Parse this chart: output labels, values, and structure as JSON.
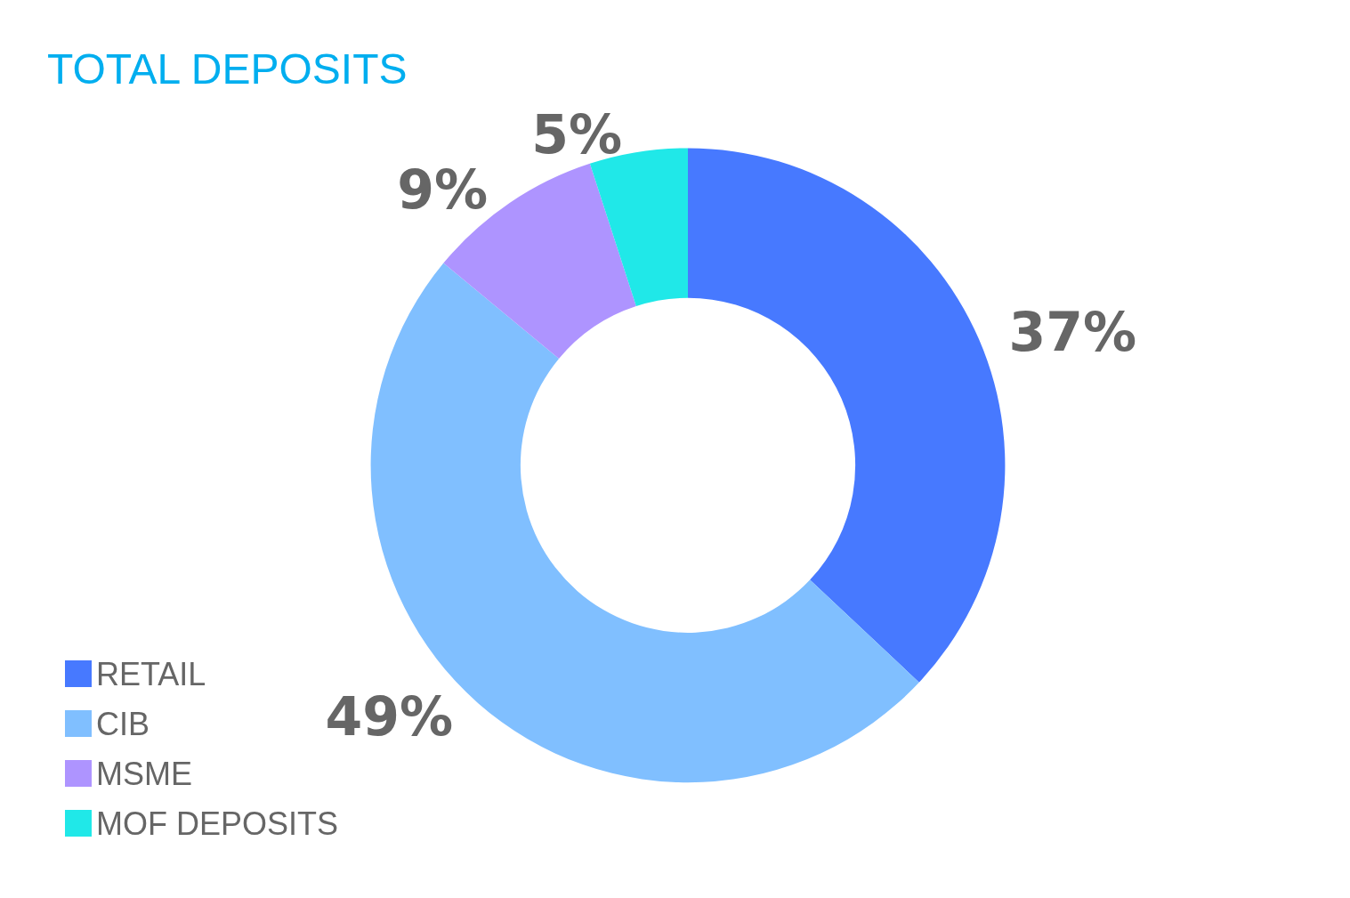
{
  "chart_data": {
    "type": "donut",
    "title": "TOTAL DEPOSITS",
    "categories": [
      "RETAIL",
      "CIB",
      "MSME",
      "MOF DEPOSITS"
    ],
    "values": [
      37,
      49,
      9,
      5
    ],
    "colors": [
      "#4779ff",
      "#80bfff",
      "#ae94ff",
      "#20e8e8"
    ],
    "value_labels": [
      "37%",
      "49%",
      "9%",
      "5%"
    ],
    "legend": "bottom left"
  }
}
